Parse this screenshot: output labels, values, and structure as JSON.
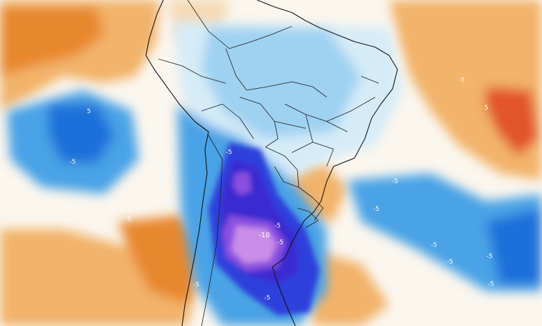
{
  "contour_labels": [
    {
      "id": "label-atl-ne-a",
      "text": "-5"
    },
    {
      "id": "label-atl-ne-b",
      "text": "5"
    },
    {
      "id": "label-pac-a",
      "text": "5"
    },
    {
      "id": "label-pac-b",
      "text": "-5"
    },
    {
      "id": "label-pac-c",
      "text": "-5"
    },
    {
      "id": "label-andes-a",
      "text": "-5"
    },
    {
      "id": "label-arg-a",
      "text": "-5"
    },
    {
      "id": "label-arg-core",
      "text": "-10"
    },
    {
      "id": "label-arg-b",
      "text": "-5"
    },
    {
      "id": "label-patagonia-a",
      "text": "-5"
    },
    {
      "id": "label-patagonia-b",
      "text": "-5"
    },
    {
      "id": "label-atl-s-a",
      "text": "-5"
    },
    {
      "id": "label-atl-s-b",
      "text": "-5"
    },
    {
      "id": "label-atl-s-c",
      "text": "-5"
    },
    {
      "id": "label-atl-s-d",
      "text": "-5"
    },
    {
      "id": "label-atl-s-e",
      "text": "-5"
    },
    {
      "id": "label-atl-s-f",
      "text": "-5"
    }
  ],
  "colors": {
    "warm_light": "#f7d9b4",
    "warm_mid": "#f2b36b",
    "warm_strong": "#e8882f",
    "warm_hot": "#e2552c",
    "cool_pale": "#d5ecf8",
    "cool_light": "#9fd1f1",
    "cool_mid": "#4aa3e6",
    "cool_deep": "#1e6fd9",
    "cool_blue": "#2f3fdc",
    "cool_indigo": "#3b2ad0",
    "cool_violet": "#8a4fe0",
    "cool_lilac": "#c98ee8"
  }
}
